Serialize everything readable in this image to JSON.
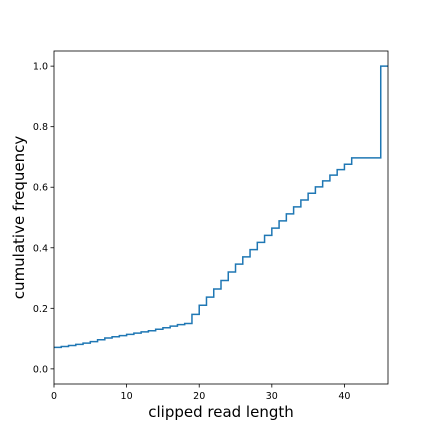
{
  "chart_data": {
    "type": "line",
    "step": true,
    "title": "",
    "xlabel": "clipped read length",
    "ylabel": "cumulative frequency",
    "xlim": [
      0,
      46
    ],
    "ylim": [
      -0.05,
      1.05
    ],
    "xticks": [
      0,
      10,
      20,
      30,
      40
    ],
    "yticks": [
      0.0,
      0.2,
      0.4,
      0.6,
      0.8,
      1.0
    ],
    "xtick_labels": [
      "0",
      "10",
      "20",
      "30",
      "40"
    ],
    "ytick_labels": [
      "0.0",
      "0.2",
      "0.4",
      "0.6",
      "0.8",
      "1.0"
    ],
    "grid": false,
    "line_color": "#1f77b4",
    "series": [
      {
        "x": [
          0,
          1,
          2,
          3,
          4,
          5,
          6,
          7,
          8,
          9,
          10,
          11,
          12,
          13,
          14,
          15,
          16,
          17,
          18,
          19,
          20,
          21,
          22,
          23,
          24,
          25,
          26,
          27,
          28,
          29,
          30,
          31,
          32,
          33,
          34,
          35,
          36,
          37,
          38,
          39,
          40,
          41,
          42,
          45,
          46
        ],
        "y": [
          0.071,
          0.074,
          0.077,
          0.081,
          0.085,
          0.09,
          0.096,
          0.102,
          0.106,
          0.11,
          0.114,
          0.118,
          0.122,
          0.126,
          0.131,
          0.136,
          0.141,
          0.146,
          0.15,
          0.18,
          0.21,
          0.237,
          0.264,
          0.292,
          0.32,
          0.346,
          0.37,
          0.394,
          0.418,
          0.441,
          0.465,
          0.489,
          0.512,
          0.535,
          0.558,
          0.58,
          0.601,
          0.621,
          0.64,
          0.658,
          0.676,
          0.697,
          0.697,
          1.0,
          1.0
        ]
      }
    ]
  }
}
